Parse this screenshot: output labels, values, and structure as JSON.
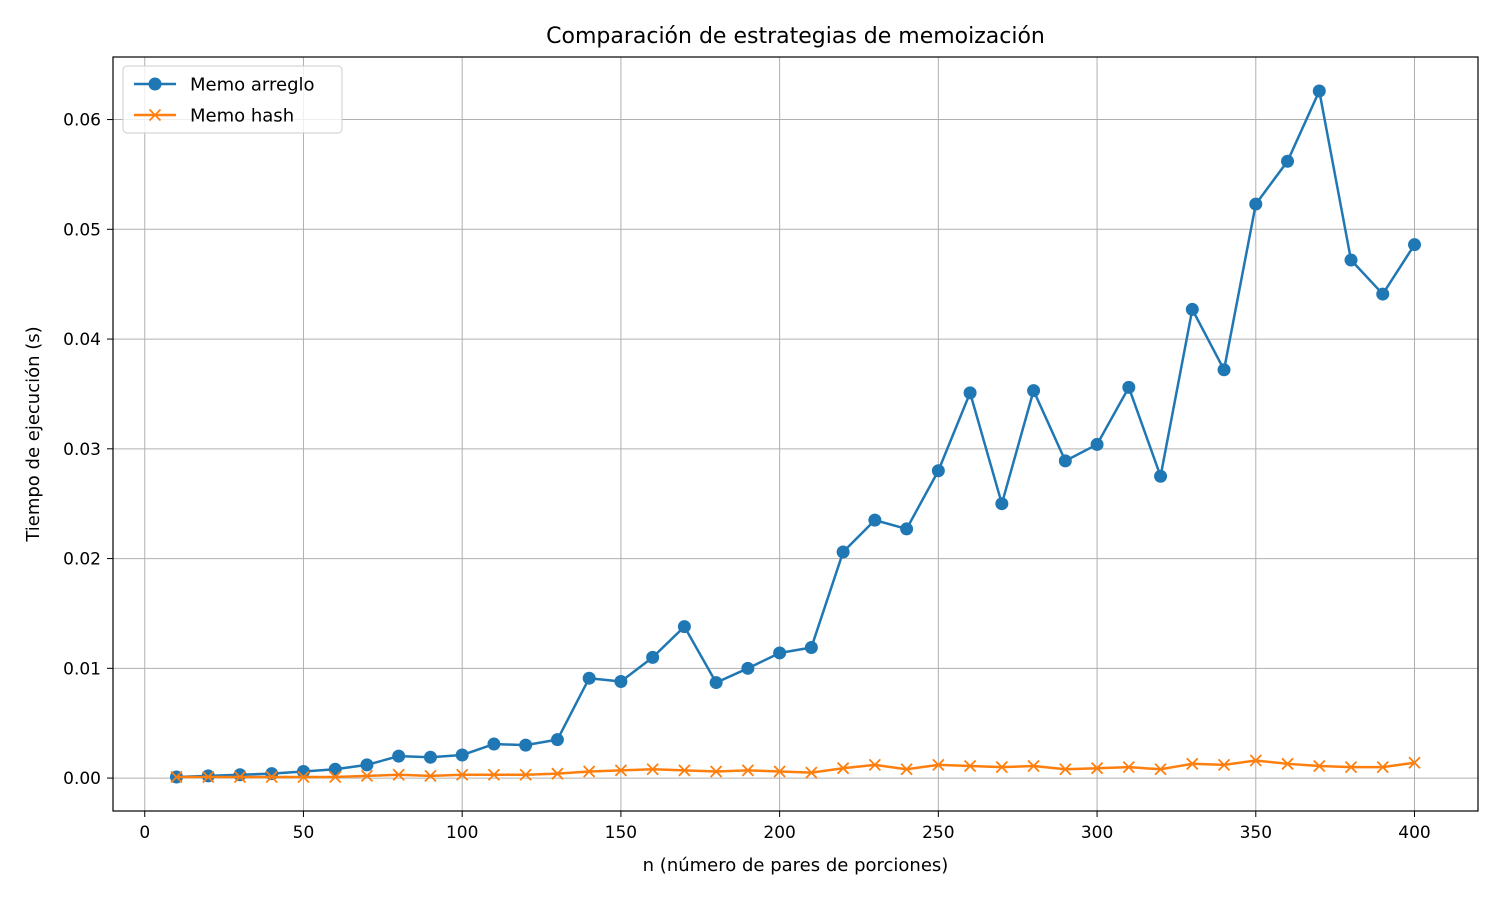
{
  "chart_data": {
    "type": "line",
    "title": "Comparación de estrategias de memoización",
    "xlabel": "n (número de pares de porciones)",
    "ylabel": "Tiempo de ejecución (s)",
    "xlim": [
      -10,
      420
    ],
    "ylim": [
      -0.003,
      0.0657
    ],
    "grid": true,
    "legend_position": "top-left",
    "x_ticks": [
      0,
      50,
      100,
      150,
      200,
      250,
      300,
      350,
      400
    ],
    "x_tick_labels": [
      "0",
      "50",
      "100",
      "150",
      "200",
      "250",
      "300",
      "350",
      "400"
    ],
    "y_ticks": [
      0.0,
      0.01,
      0.02,
      0.03,
      0.04,
      0.05,
      0.06
    ],
    "y_tick_labels": [
      "0.00",
      "0.01",
      "0.02",
      "0.03",
      "0.04",
      "0.05",
      "0.06"
    ],
    "x": [
      10,
      20,
      30,
      40,
      50,
      60,
      70,
      80,
      90,
      100,
      110,
      120,
      130,
      140,
      150,
      160,
      170,
      180,
      190,
      200,
      210,
      220,
      230,
      240,
      250,
      260,
      270,
      280,
      290,
      300,
      310,
      320,
      330,
      340,
      350,
      360,
      370,
      380,
      390,
      400
    ],
    "series": [
      {
        "name": "Memo arreglo",
        "color": "#1f77b4",
        "marker": "circle",
        "values": [
          0.0001,
          0.0002,
          0.0003,
          0.0004,
          0.0006,
          0.0008,
          0.0012,
          0.002,
          0.0019,
          0.0021,
          0.0031,
          0.003,
          0.0035,
          0.0091,
          0.0088,
          0.011,
          0.0138,
          0.0087,
          0.01,
          0.0114,
          0.0119,
          0.0206,
          0.0235,
          0.0227,
          0.028,
          0.0351,
          0.025,
          0.0353,
          0.0289,
          0.0304,
          0.0356,
          0.0275,
          0.0427,
          0.0372,
          0.0523,
          0.0562,
          0.0626,
          0.0472,
          0.0441,
          0.0486
        ]
      },
      {
        "name": "Memo hash",
        "color": "#ff7f0e",
        "marker": "x",
        "values": [
          0.0001,
          0.0001,
          0.0001,
          0.0001,
          0.0001,
          0.0001,
          0.0002,
          0.0003,
          0.0002,
          0.0003,
          0.0003,
          0.0003,
          0.0004,
          0.0006,
          0.0007,
          0.0008,
          0.0007,
          0.0006,
          0.0007,
          0.0006,
          0.0005,
          0.0009,
          0.0012,
          0.0008,
          0.0012,
          0.0011,
          0.001,
          0.0011,
          0.0008,
          0.0009,
          0.001,
          0.0008,
          0.0013,
          0.0012,
          0.0016,
          0.0013,
          0.0011,
          0.001,
          0.001,
          0.0014
        ]
      }
    ]
  }
}
